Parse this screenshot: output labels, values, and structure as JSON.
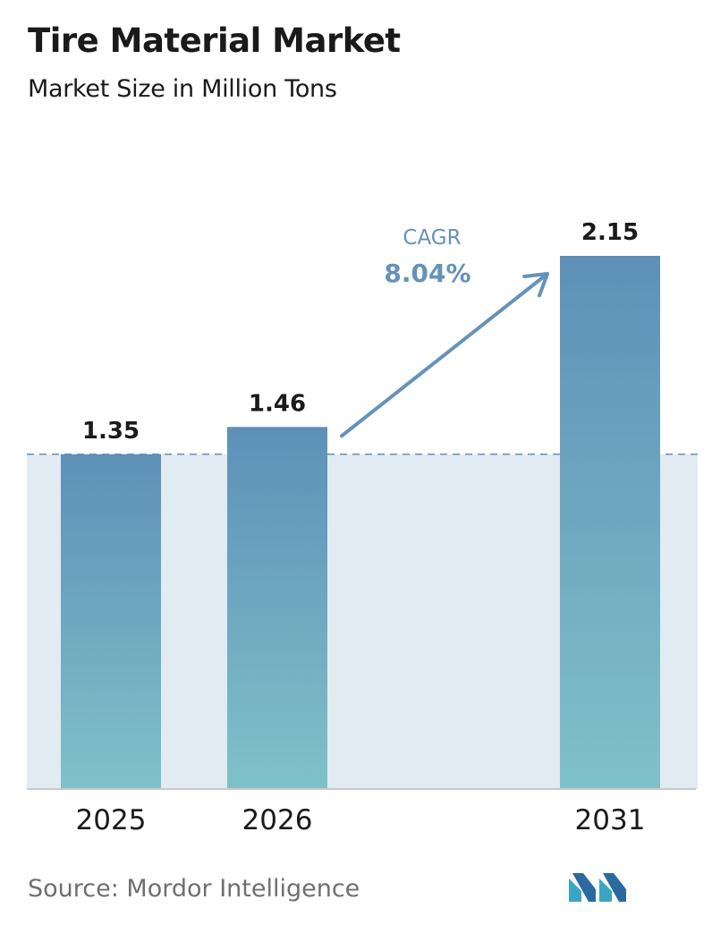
{
  "title": "Tire Material Market",
  "subtitle": "Market Size in Million Tons",
  "chart_data": {
    "type": "bar",
    "categories": [
      "2025",
      "2026",
      "2031"
    ],
    "values": [
      1.35,
      1.46,
      2.15
    ],
    "value_labels": [
      "1.35",
      "1.46",
      "2.15"
    ],
    "title": "Tire Material Market",
    "subtitle": "Market Size in Million Tons",
    "ylim": [
      0,
      2.15
    ],
    "grid": false,
    "reference_line": "dashed line at first bar value",
    "annotation": {
      "label": "CAGR",
      "value": "8.04%"
    },
    "colors": {
      "bar_top": "#5e90b8",
      "bar_bottom": "#7fc1c8",
      "band": "#e2eaf2",
      "arrow": "#6592b9",
      "axis": "#c9c9c9"
    }
  },
  "footer": {
    "source": "Source: Mordor Intelligence",
    "logo_icon": "mordor-intelligence-logo-icon"
  }
}
